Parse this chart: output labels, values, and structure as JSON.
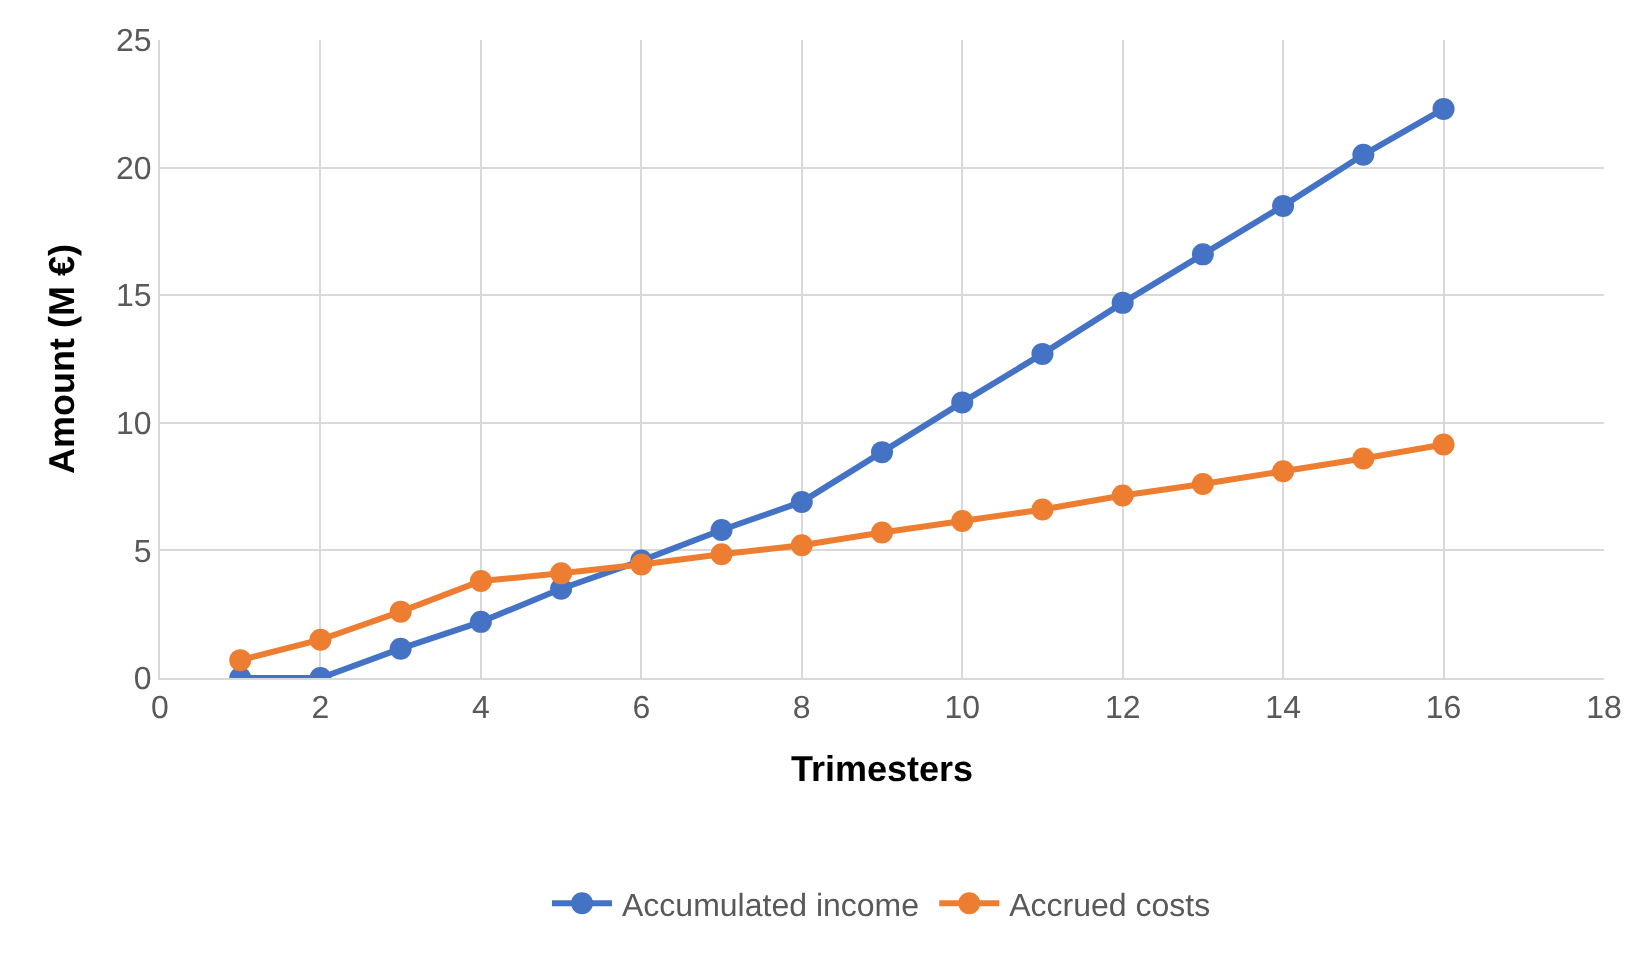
{
  "chart_data": {
    "type": "line",
    "xlabel": "Trimesters",
    "ylabel": "Amount (M €)",
    "x": [
      1,
      2,
      3,
      4,
      5,
      6,
      7,
      8,
      9,
      10,
      11,
      12,
      13,
      14,
      15,
      16
    ],
    "series": [
      {
        "name": "Accumulated income",
        "color": "#4472c4",
        "values": [
          0,
          0,
          1.15,
          2.2,
          3.5,
          4.6,
          5.8,
          6.9,
          8.85,
          10.8,
          12.7,
          14.7,
          16.6,
          18.5,
          20.5,
          22.3
        ]
      },
      {
        "name": "Accrued costs",
        "color": "#ed7d31",
        "values": [
          0.7,
          1.5,
          2.6,
          3.8,
          4.1,
          4.45,
          4.85,
          5.2,
          5.7,
          6.15,
          6.6,
          7.15,
          7.6,
          8.1,
          8.6,
          9.15
        ]
      }
    ],
    "xlim": [
      0,
      18
    ],
    "xticks": [
      0,
      2,
      4,
      6,
      8,
      10,
      12,
      14,
      16,
      18
    ],
    "ylim": [
      0,
      25
    ],
    "yticks": [
      0,
      5,
      10,
      15,
      20,
      25
    ],
    "grid": true,
    "legend": "bottom",
    "marker": "circle",
    "line_style": "solid"
  }
}
